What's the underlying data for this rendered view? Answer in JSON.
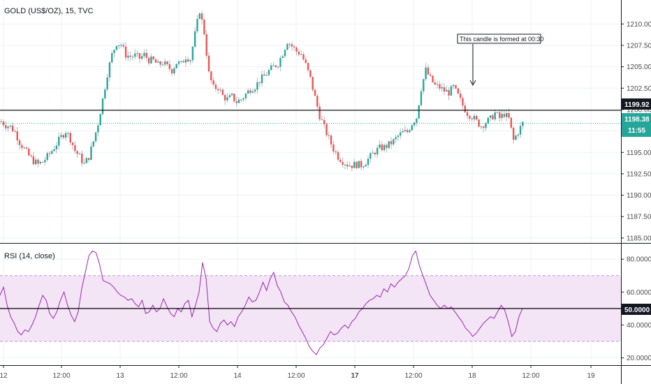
{
  "header": {
    "symbol_title": "GOLD (US$/OZ), 15, TVC"
  },
  "rsi_panel": {
    "title": "RSI (14, close)"
  },
  "annotation": {
    "text": "This candle is formed at 00:30"
  },
  "badges": {
    "hline_price": "1199.92",
    "last_price": "1198.38",
    "countdown": "11:55",
    "rsi_level": "50.0000"
  },
  "colors": {
    "up": "#26a69a",
    "down": "#ef5350",
    "rsi_line": "#9c27b0",
    "rsi_band": "#f3e5f5",
    "last_price_line": "#26a69a",
    "hline": "#000000"
  },
  "chart_data": [
    {
      "type": "candlestick",
      "title": "GOLD (US$/OZ), 15, TVC",
      "ylim": [
        1184.5,
        1212.8
      ],
      "y_ticks": [
        "1185.00",
        "1187.50",
        "1190.00",
        "1192.50",
        "1195.00",
        "1197.50",
        "1200.00",
        "1202.50",
        "1205.00",
        "1207.50",
        "1210.00"
      ],
      "x_ticks": [
        "12",
        "12:00",
        "13",
        "12:00",
        "14",
        "12:00",
        "17",
        "12:00",
        "18",
        "12:00",
        "19"
      ],
      "horizontal_line": 1199.92,
      "last_price": 1198.38,
      "close_path": [
        [
          0,
          1198.6
        ],
        [
          2,
          1198.2
        ],
        [
          4,
          1198.0
        ],
        [
          6,
          1197.4
        ],
        [
          8,
          1196.2
        ],
        [
          10,
          1195.4
        ],
        [
          12,
          1194.6
        ],
        [
          14,
          1194.0
        ],
        [
          16,
          1193.6
        ],
        [
          18,
          1193.9
        ],
        [
          20,
          1194.5
        ],
        [
          22,
          1195.2
        ],
        [
          24,
          1196.0
        ],
        [
          26,
          1196.8
        ],
        [
          28,
          1197.5
        ],
        [
          30,
          1196.6
        ],
        [
          32,
          1195.2
        ],
        [
          34,
          1194.5
        ],
        [
          36,
          1193.6
        ],
        [
          38,
          1194.5
        ],
        [
          40,
          1196.3
        ],
        [
          42,
          1198.4
        ],
        [
          44,
          1201.2
        ],
        [
          46,
          1204.2
        ],
        [
          48,
          1206.4
        ],
        [
          50,
          1207.8
        ],
        [
          52,
          1207.6
        ],
        [
          54,
          1206.4
        ],
        [
          56,
          1206.2
        ],
        [
          58,
          1206.3
        ],
        [
          60,
          1206.0
        ],
        [
          62,
          1206.4
        ],
        [
          64,
          1205.8
        ],
        [
          66,
          1205.7
        ],
        [
          68,
          1205.2
        ],
        [
          70,
          1205.5
        ],
        [
          72,
          1205.0
        ],
        [
          74,
          1204.6
        ],
        [
          76,
          1205.5
        ],
        [
          78,
          1205.3
        ],
        [
          80,
          1206.2
        ],
        [
          82,
          1205.9
        ],
        [
          84,
          1208.8
        ],
        [
          86,
          1211.6
        ],
        [
          88,
          1209.0
        ],
        [
          90,
          1204.2
        ],
        [
          92,
          1202.5
        ],
        [
          94,
          1202.6
        ],
        [
          96,
          1201.6
        ],
        [
          98,
          1201.2
        ],
        [
          100,
          1201.5
        ],
        [
          102,
          1200.9
        ],
        [
          104,
          1201.2
        ],
        [
          106,
          1201.8
        ],
        [
          108,
          1202.4
        ],
        [
          110,
          1202.7
        ],
        [
          112,
          1203.4
        ],
        [
          114,
          1203.9
        ],
        [
          116,
          1204.5
        ],
        [
          118,
          1205.0
        ],
        [
          120,
          1205.4
        ],
        [
          122,
          1206.6
        ],
        [
          124,
          1208.0
        ],
        [
          126,
          1207.4
        ],
        [
          128,
          1206.8
        ],
        [
          130,
          1206.5
        ],
        [
          132,
          1205.2
        ],
        [
          134,
          1203.6
        ],
        [
          136,
          1201.4
        ],
        [
          138,
          1199.3
        ],
        [
          140,
          1197.9
        ],
        [
          142,
          1196.6
        ],
        [
          144,
          1195.4
        ],
        [
          146,
          1194.5
        ],
        [
          148,
          1194.0
        ],
        [
          150,
          1193.6
        ],
        [
          152,
          1193.5
        ],
        [
          154,
          1193.6
        ],
        [
          156,
          1193.5
        ],
        [
          158,
          1193.9
        ],
        [
          160,
          1194.5
        ],
        [
          162,
          1195.1
        ],
        [
          164,
          1195.5
        ],
        [
          166,
          1195.6
        ],
        [
          168,
          1195.9
        ],
        [
          170,
          1196.3
        ],
        [
          172,
          1196.9
        ],
        [
          174,
          1197.3
        ],
        [
          176,
          1197.4
        ],
        [
          178,
          1198.4
        ],
        [
          180,
          1199.1
        ],
        [
          182,
          1202.5
        ],
        [
          184,
          1204.6
        ],
        [
          186,
          1203.6
        ],
        [
          188,
          1202.8
        ],
        [
          190,
          1202.6
        ],
        [
          192,
          1202.2
        ],
        [
          194,
          1202.0
        ],
        [
          196,
          1202.6
        ],
        [
          198,
          1201.6
        ],
        [
          200,
          1200.5
        ],
        [
          202,
          1199.6
        ],
        [
          204,
          1199.2
        ],
        [
          206,
          1198.6
        ],
        [
          208,
          1198.1
        ],
        [
          210,
          1198.5
        ],
        [
          212,
          1198.9
        ],
        [
          214,
          1199.6
        ],
        [
          216,
          1199.0
        ],
        [
          218,
          1199.5
        ],
        [
          220,
          1198.9
        ],
        [
          222,
          1196.4
        ],
        [
          224,
          1197.4
        ],
        [
          226,
          1198.4
        ]
      ]
    },
    {
      "type": "line",
      "title": "RSI (14, close)",
      "ylim": [
        16,
        89
      ],
      "y_ticks": [
        "20.0000",
        "40.0000",
        "60.0000",
        "80.0000"
      ],
      "band": [
        30,
        70
      ],
      "reference_line": 50,
      "series": [
        {
          "values": [
            58,
            63,
            52,
            45,
            41,
            36,
            34,
            37,
            36,
            40,
            45,
            52,
            58,
            55,
            47,
            44,
            48,
            55,
            60,
            52,
            46,
            42,
            48,
            62,
            72,
            82,
            85,
            84,
            77,
            67,
            66,
            65,
            63,
            60,
            58,
            57,
            55,
            56,
            53,
            51,
            55,
            47,
            48,
            52,
            48,
            50,
            56,
            51,
            47,
            45,
            50,
            48,
            53,
            55,
            45,
            52,
            60,
            78,
            68,
            42,
            38,
            36,
            41,
            43,
            40,
            42,
            39,
            45,
            48,
            52,
            57,
            54,
            55,
            60,
            66,
            61,
            68,
            72,
            64,
            60,
            54,
            52,
            48,
            45,
            40,
            36,
            32,
            27,
            24,
            22,
            26,
            28,
            32,
            36,
            34,
            35,
            38,
            40,
            38,
            42,
            44,
            48,
            50,
            53,
            55,
            56,
            58,
            57,
            62,
            60,
            65,
            63,
            66,
            68,
            70,
            74,
            82,
            85,
            76,
            70,
            64,
            58,
            55,
            52,
            50,
            52,
            50,
            51,
            48,
            45,
            42,
            38,
            36,
            33,
            35,
            38,
            41,
            43,
            45,
            44,
            48,
            52,
            49,
            42,
            33,
            36,
            45,
            50
          ]
        }
      ]
    }
  ]
}
